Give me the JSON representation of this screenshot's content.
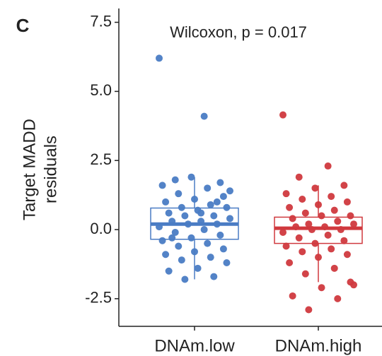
{
  "chart_data": {
    "type": "box",
    "panel_label": "C",
    "annotation": "Wilcoxon, p = 0.017",
    "y_label": [
      "Target MADD",
      "residuals"
    ],
    "categories": [
      "DNAm.low",
      "DNAm.high"
    ],
    "ylim": [
      -3.5,
      8.0
    ],
    "yticks": [
      -2.5,
      {
        "value": 0,
        "label": "0.0"
      },
      2.5,
      {
        "value": 5,
        "label": "5.0"
      },
      7.5
    ],
    "boxes": [
      {
        "color": "#4a7cc4",
        "whisker_low": -1.8,
        "q1": -0.35,
        "median": 0.2,
        "q3": 0.78,
        "whisker_high": 1.9,
        "points": [
          6.2,
          4.1,
          1.8,
          1.7,
          1.9,
          1.6,
          1.5,
          1.3,
          1.2,
          1.1,
          1.0,
          0.9,
          0.8,
          0.8,
          0.7,
          0.6,
          0.5,
          0.5,
          0.4,
          0.3,
          0.3,
          0.2,
          0.2,
          0.1,
          0.0,
          -0.1,
          -0.2,
          -0.3,
          -0.4,
          -0.5,
          -0.6,
          -0.7,
          -0.8,
          -0.9,
          -1.0,
          -1.1,
          -1.2,
          -1.4,
          -1.5,
          -1.7,
          -1.8,
          1.4,
          0.6,
          -0.3,
          1.0
        ]
      },
      {
        "color": "#d0393e",
        "whisker_low": -1.9,
        "q1": -0.5,
        "median": 0.05,
        "q3": 0.45,
        "whisker_high": 1.6,
        "points": [
          4.15,
          2.3,
          1.9,
          1.6,
          1.5,
          1.3,
          1.2,
          1.1,
          1.0,
          0.9,
          0.8,
          0.7,
          0.6,
          0.5,
          0.5,
          0.4,
          0.3,
          0.2,
          0.2,
          0.1,
          0.1,
          0.0,
          0.0,
          -0.1,
          -0.2,
          -0.3,
          -0.4,
          -0.5,
          -0.6,
          -0.7,
          -0.8,
          -0.9,
          -1.0,
          -1.2,
          -1.4,
          -1.6,
          -1.9,
          -2.1,
          -2.4,
          -2.5,
          -2.9,
          -2.0
        ]
      }
    ]
  }
}
